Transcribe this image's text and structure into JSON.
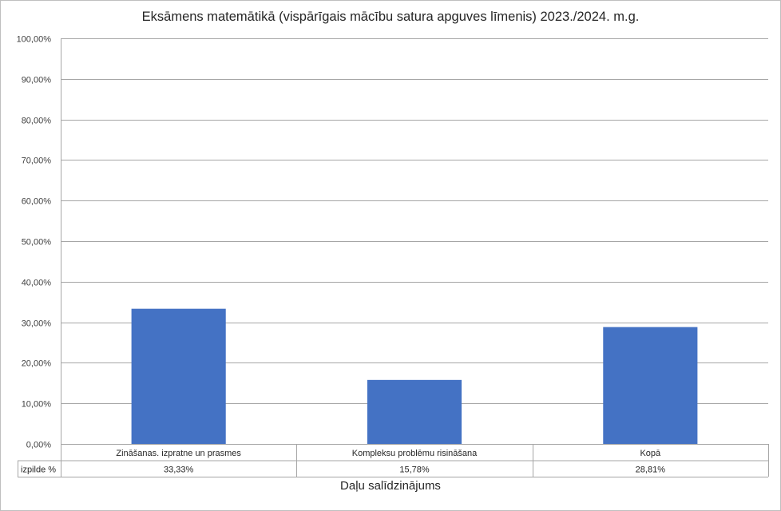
{
  "chart_data": {
    "type": "bar",
    "title": "Eksāmens matemātikā (vispārīgais mācību satura apguves līmenis) 2023./2024. m.g.",
    "xlabel": "Daļu salīdzinājums",
    "ylabel": "",
    "ylim": [
      0,
      100
    ],
    "y_tick_step": 10,
    "y_tick_labels": [
      "0,00%",
      "10,00%",
      "20,00%",
      "30,00%",
      "40,00%",
      "50,00%",
      "60,00%",
      "70,00%",
      "80,00%",
      "90,00%",
      "100,00%"
    ],
    "categories": [
      "Zināšanas. izpratne un prasmes",
      "Kompleksu problēmu risināšana",
      "Kopā"
    ],
    "series": [
      {
        "name": "izpilde %",
        "values": [
          33.33,
          15.78,
          28.81
        ],
        "value_labels": [
          "33,33%",
          "15,78%",
          "28,81%"
        ],
        "color": "#4472c4"
      }
    ],
    "grid": true,
    "legend": "data-table"
  }
}
